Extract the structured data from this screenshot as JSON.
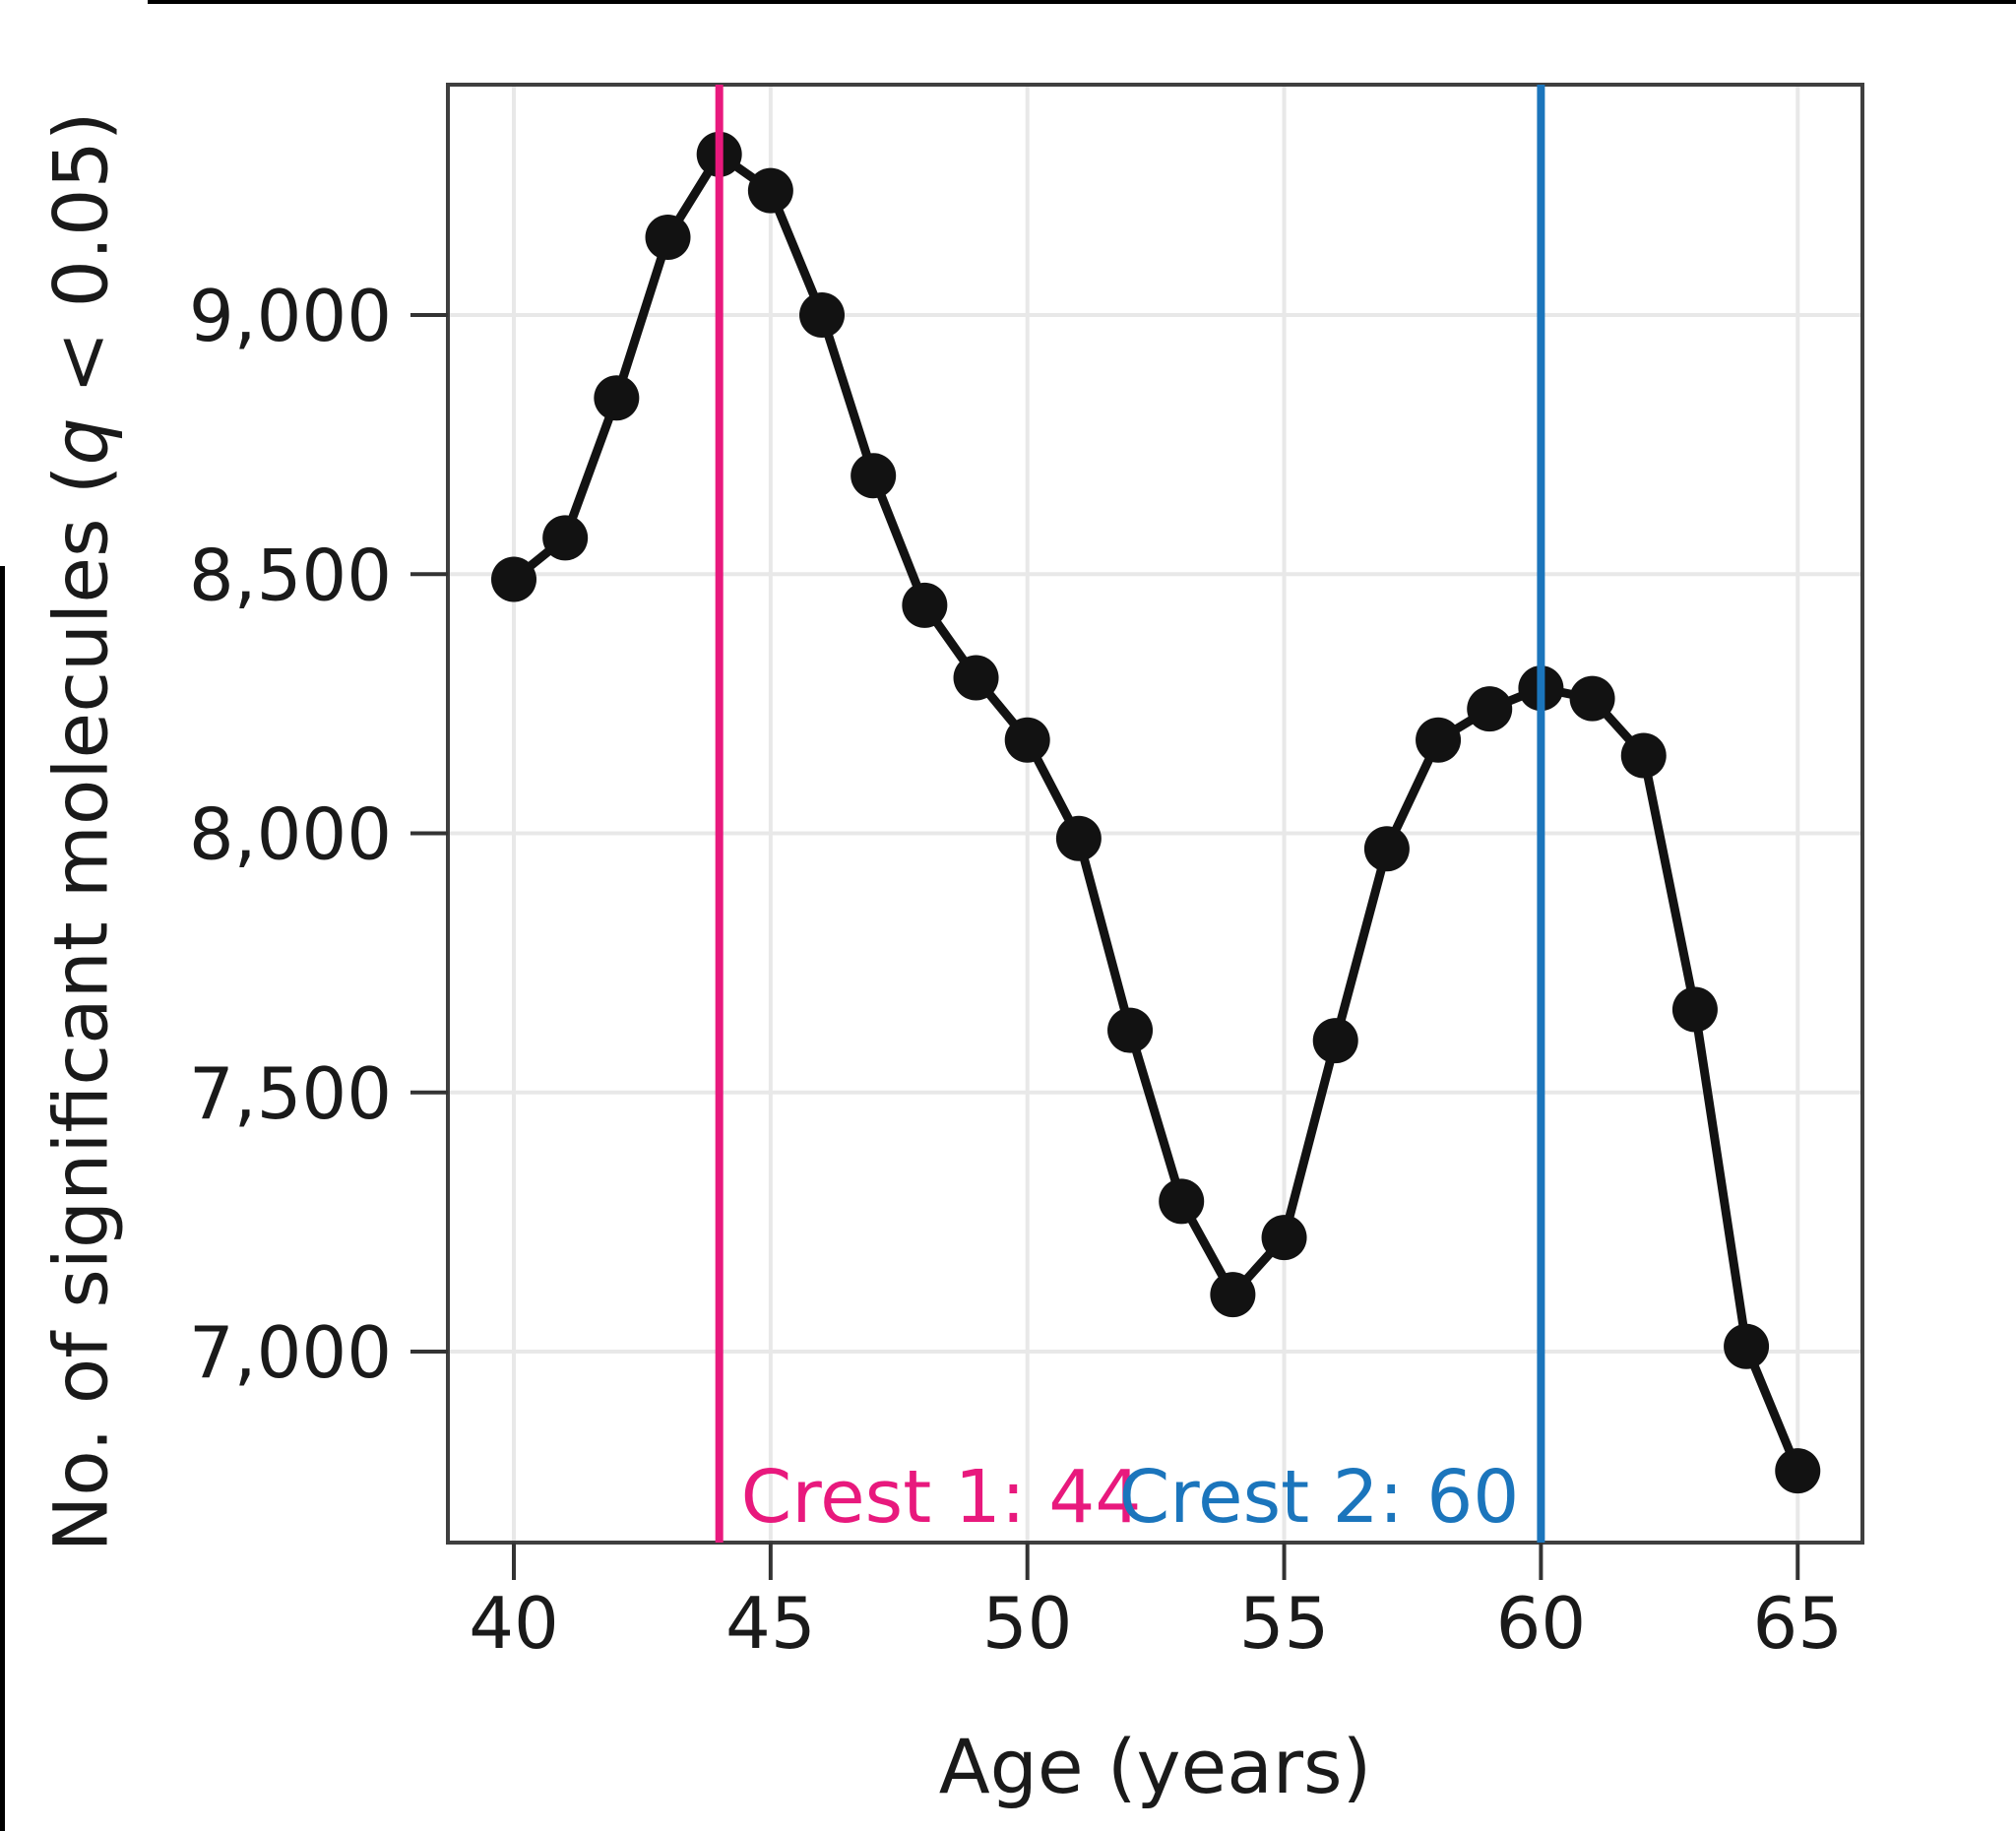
{
  "chart_data": {
    "type": "line",
    "title": "",
    "xlabel": "Age (years)",
    "ylabel": "No. of significant molecules (q < 0.05)",
    "ylabel_italic_token": "q",
    "series": [
      {
        "name": "significant-molecules-by-age",
        "x": [
          40,
          41,
          42,
          43,
          44,
          45,
          46,
          47,
          48,
          49,
          50,
          51,
          52,
          53,
          54,
          55,
          56,
          57,
          58,
          59,
          60,
          61,
          62,
          63,
          64,
          65
        ],
        "y": [
          8490,
          8570,
          8840,
          9150,
          9310,
          9240,
          9000,
          8690,
          8440,
          8300,
          8180,
          7990,
          7620,
          7290,
          7110,
          7220,
          7600,
          7970,
          8180,
          8240,
          8280,
          8260,
          8150,
          7660,
          7010,
          6770
        ],
        "color": "#121212",
        "marker": "circle"
      }
    ],
    "xlim": [
      38.72,
      66.26
    ],
    "ylim": [
      6640,
      9455
    ],
    "grid": true,
    "legend": false,
    "xticks": {
      "values": [
        40,
        45,
        50,
        55,
        60,
        65
      ],
      "labels": [
        "40",
        "45",
        "50",
        "55",
        "60",
        "65"
      ]
    },
    "yticks": {
      "values": [
        7000,
        7500,
        8000,
        8500,
        9000
      ],
      "labels": [
        "7,000",
        "7,500",
        "8,000",
        "8,500",
        "9,000"
      ]
    },
    "annotations": [
      {
        "type": "vline",
        "x": 44,
        "label": "Crest 1: 44",
        "color": "#e8197d",
        "label_side": "right"
      },
      {
        "type": "vline",
        "x": 60,
        "label": "Crest 2: 60",
        "color": "#1b75bc",
        "label_side": "left"
      }
    ],
    "colors": {
      "line": "#121212",
      "marker": "#121212",
      "grid": "#e8e8e8",
      "frame": "#3f3f3f",
      "tick": "#333333",
      "text": "#1a1a1a",
      "crest1": "#e8197d",
      "crest2": "#1b75bc",
      "background": "#ffffff"
    }
  }
}
